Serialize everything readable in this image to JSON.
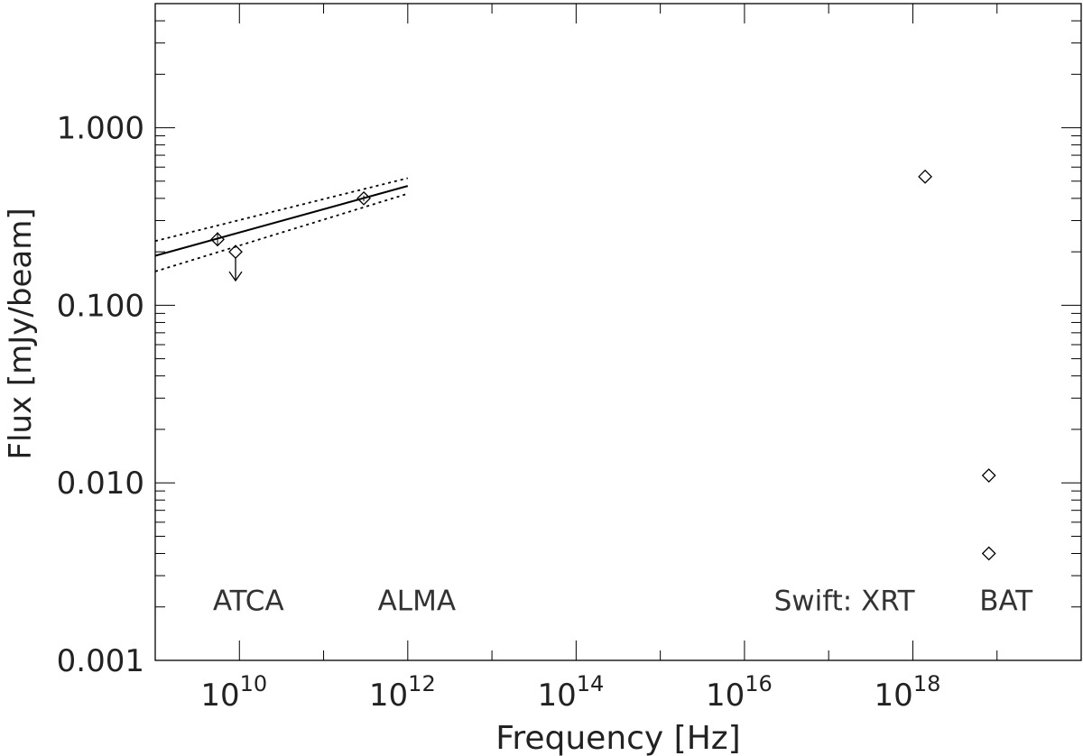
{
  "chart_data": {
    "type": "scatter",
    "title": "",
    "xlabel": "Frequency [Hz]",
    "ylabel": "Flux [mJy/beam]",
    "xscale": "log",
    "yscale": "log",
    "xlim": [
      1000000000.0,
      1e+20
    ],
    "ylim": [
      0.001,
      5
    ],
    "grid": false,
    "legend": "none",
    "x_ticks": [
      {
        "value": 10000000000.0,
        "base": "10",
        "exp": "10"
      },
      {
        "value": 1000000000000.0,
        "base": "10",
        "exp": "12"
      },
      {
        "value": 100000000000000.0,
        "base": "10",
        "exp": "14"
      },
      {
        "value": 1e+16,
        "base": "10",
        "exp": "16"
      },
      {
        "value": 1e+18,
        "base": "10",
        "exp": "18"
      }
    ],
    "y_ticks": [
      {
        "value": 0.001,
        "label": "0.001"
      },
      {
        "value": 0.01,
        "label": "0.010"
      },
      {
        "value": 0.1,
        "label": "0.100"
      },
      {
        "value": 1.0,
        "label": "1.000"
      }
    ],
    "points": [
      {
        "x": 5500000000.0,
        "y": 0.235,
        "yerr": [
          0.215,
          0.258
        ],
        "upper_limit": false
      },
      {
        "x": 9000000000.0,
        "y": 0.2,
        "upper_limit": true
      },
      {
        "x": 300000000000.0,
        "y": 0.4,
        "yerr": [
          0.385,
          0.415
        ],
        "upper_limit": false
      },
      {
        "x": 1.4e+18,
        "y": 0.53,
        "upper_limit": false
      },
      {
        "x": 8e+18,
        "y": 0.011,
        "upper_limit": false
      },
      {
        "x": 8e+18,
        "y": 0.004,
        "upper_limit": false
      }
    ],
    "fit": {
      "x_range": [
        1000000000.0,
        1000000000000.0
      ],
      "best": [
        0.19,
        0.47
      ],
      "upper": [
        0.23,
        0.52
      ],
      "lower": [
        0.155,
        0.425
      ]
    },
    "annotations": [
      {
        "text": "ATCA",
        "x": 10000000000.0,
        "y": 0.0022
      },
      {
        "text": "ALMA",
        "x": 1000000000000.0,
        "y": 0.0022
      },
      {
        "text": "Swift:  XRT",
        "x": 1.2e+17,
        "y": 0.0022
      },
      {
        "text": "BAT",
        "x": 1e+19,
        "y": 0.0022
      }
    ]
  }
}
